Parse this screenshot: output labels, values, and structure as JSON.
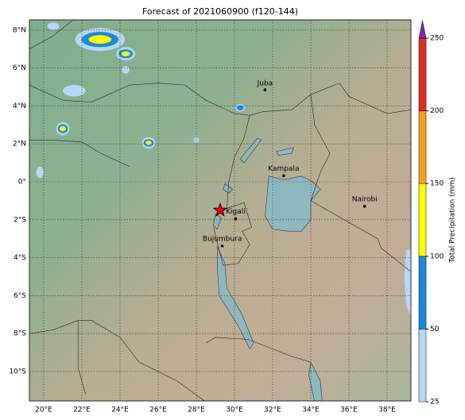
{
  "title": "Forecast of 2021060900 (f120-144)",
  "map": {
    "lon_labels": [
      "20°E",
      "22°E",
      "24°E",
      "26°E",
      "28°E",
      "30°E",
      "32°E",
      "34°E",
      "36°E",
      "38°E"
    ],
    "lat_labels": [
      "8°N",
      "6°N",
      "4°N",
      "2°N",
      "0°",
      "2°S",
      "4°S",
      "6°S",
      "8°S",
      "10°S"
    ],
    "cities": [
      "Juba",
      "Kampala",
      "Nairobi",
      "Kigali",
      "Bujumbura"
    ]
  },
  "colorbar": {
    "label": "Total Precipitation (mm)",
    "ticks": [
      25,
      50,
      100,
      150,
      200,
      250
    ],
    "colors": [
      "#b5d8f6",
      "#1b8ad4",
      "#ffff00",
      "#f5a11e",
      "#e0301e"
    ],
    "extend_color": "#7b2ab8"
  }
}
